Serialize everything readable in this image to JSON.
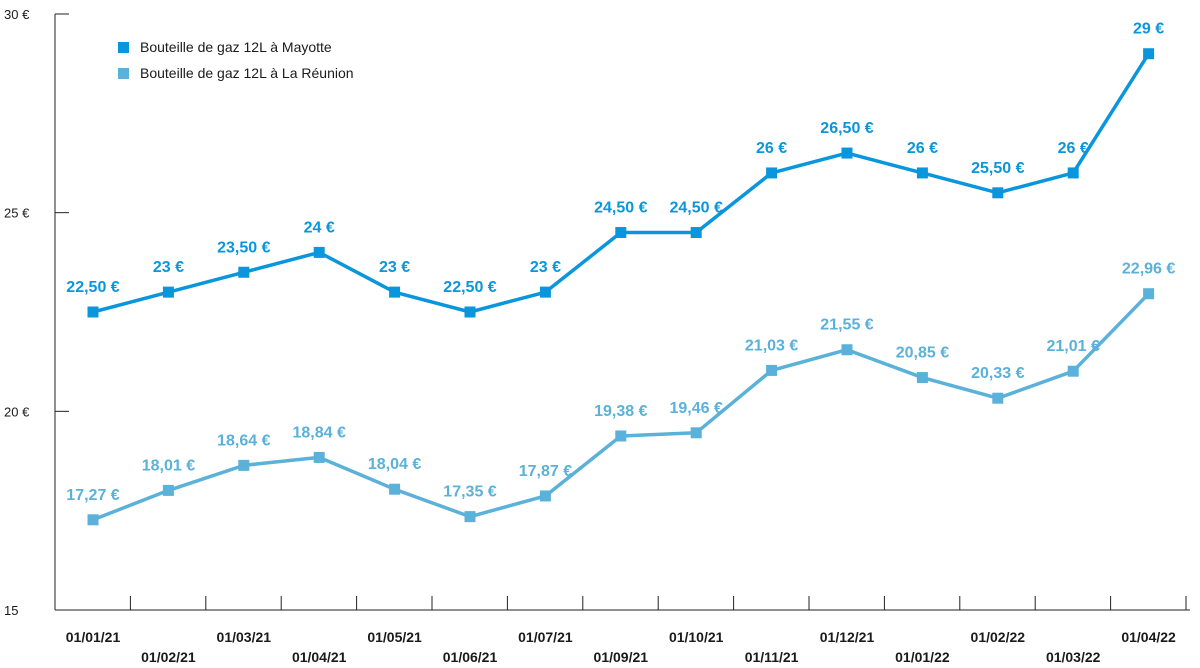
{
  "chart_data": {
    "type": "line",
    "categories": [
      "01/01/21",
      "01/02/21",
      "01/03/21",
      "01/04/21",
      "01/05/21",
      "01/06/21",
      "01/07/21",
      "01/09/21",
      "01/10/21",
      "01/11/21",
      "01/12/21",
      "01/01/22",
      "01/02/22",
      "01/03/22",
      "01/04/22"
    ],
    "ylim": [
      15,
      30
    ],
    "yticks": [
      {
        "value": 15,
        "label": "15"
      },
      {
        "value": 20,
        "label": "20 €"
      },
      {
        "value": 25,
        "label": "25 €"
      },
      {
        "value": 30,
        "label": "30 €"
      }
    ],
    "grid": false,
    "legend_position": "top-left",
    "series": [
      {
        "name": "Bouteille de gaz 12L à Mayotte",
        "color": "#0a96dc",
        "values": [
          22.5,
          23,
          23.5,
          24,
          23,
          22.5,
          23,
          24.5,
          24.5,
          26,
          26.5,
          26,
          25.5,
          26,
          29
        ],
        "labels": [
          "22,50 €",
          "23 €",
          "23,50 €",
          "24 €",
          "23 €",
          "22,50 €",
          "23 €",
          "24,50 €",
          "24,50 €",
          "26 €",
          "26,50 €",
          "26 €",
          "25,50 €",
          "26 €",
          "29 €"
        ]
      },
      {
        "name": "Bouteille de gaz 12L à La Réunion",
        "color": "#5ab1d9",
        "values": [
          17.27,
          18.01,
          18.64,
          18.84,
          18.04,
          17.35,
          17.87,
          19.38,
          19.46,
          21.03,
          21.55,
          20.85,
          20.33,
          21.01,
          22.96
        ],
        "labels": [
          "17,27 €",
          "18,01 €",
          "18,64 €",
          "18,84 €",
          "18,04 €",
          "17,35 €",
          "17,87 €",
          "19,38 €",
          "19,46 €",
          "21,03 €",
          "21,55 €",
          "20,85 €",
          "20,33 €",
          "21,01 €",
          "22,96 €"
        ]
      }
    ]
  }
}
